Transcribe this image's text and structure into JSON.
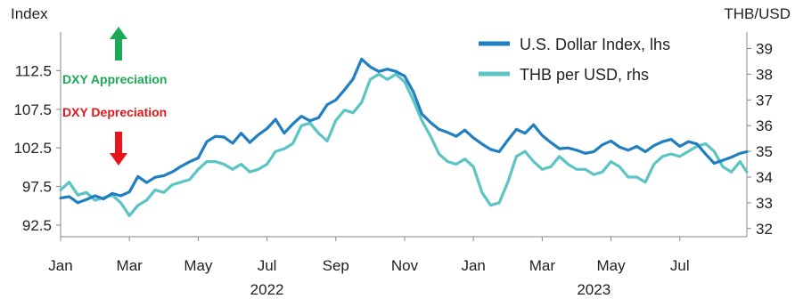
{
  "chart_data": {
    "type": "line",
    "left_axis": {
      "title": "Index",
      "ticks": [
        92.5,
        97.5,
        102.5,
        107.5,
        112.5
      ],
      "range": [
        91.0,
        117.5
      ]
    },
    "right_axis": {
      "title": "THB/USD",
      "ticks": [
        32,
        33,
        34,
        35,
        36,
        37,
        38,
        39
      ],
      "range": [
        31.68,
        39.64
      ]
    },
    "x_axis": {
      "month_labels": [
        "Jan",
        "Mar",
        "May",
        "Jul",
        "Sep",
        "Nov",
        "Jan",
        "Mar",
        "May",
        "Jul"
      ],
      "month_positions": [
        0,
        2,
        4,
        6,
        8,
        10,
        12,
        14,
        16,
        18
      ],
      "year_labels": [
        "2022",
        "2023"
      ],
      "year_positions": [
        6,
        15.5
      ],
      "range": [
        0,
        19.95
      ]
    },
    "legend_position": "top-right",
    "grid": false,
    "annotations": {
      "appreciation": "DXY Appreciation",
      "depreciation": "DXY Depreciation"
    },
    "colors": {
      "dxy": "#1f7fc0",
      "thb": "#5bc4c4",
      "up_arrow": "#1aaa55",
      "down_arrow": "#e8141c"
    },
    "series": [
      {
        "name": "U.S. Dollar Index, lhs",
        "axis": "left",
        "x": [
          0,
          0.25,
          0.5,
          0.75,
          1,
          1.25,
          1.5,
          1.75,
          2,
          2.25,
          2.5,
          2.75,
          3,
          3.25,
          3.5,
          3.75,
          4,
          4.25,
          4.5,
          4.75,
          5,
          5.25,
          5.5,
          5.75,
          6,
          6.25,
          6.5,
          6.75,
          7,
          7.25,
          7.5,
          7.75,
          8,
          8.25,
          8.5,
          8.75,
          9,
          9.25,
          9.5,
          9.75,
          10,
          10.25,
          10.5,
          10.75,
          11,
          11.25,
          11.5,
          11.75,
          12,
          12.25,
          12.5,
          12.75,
          13,
          13.25,
          13.5,
          13.75,
          14,
          14.25,
          14.5,
          14.75,
          15,
          15.25,
          15.5,
          15.75,
          16,
          16.25,
          16.5,
          16.75,
          17,
          17.25,
          17.5,
          17.75,
          18,
          18.25,
          18.5,
          18.75,
          19,
          19.25,
          19.5,
          19.75,
          19.95
        ],
        "values": [
          96.0,
          96.2,
          95.4,
          95.8,
          96.3,
          95.9,
          96.6,
          96.3,
          96.8,
          98.8,
          98.0,
          98.7,
          98.9,
          99.4,
          100.1,
          100.7,
          101.2,
          103.3,
          104.0,
          103.9,
          103.1,
          104.4,
          103.2,
          104.2,
          105.0,
          106.2,
          104.4,
          105.6,
          106.6,
          106.0,
          106.4,
          108.1,
          108.7,
          110.0,
          111.4,
          114.0,
          113.0,
          112.4,
          112.7,
          112.4,
          111.8,
          109.8,
          106.9,
          105.8,
          104.9,
          104.5,
          104.0,
          104.8,
          103.8,
          103.0,
          102.3,
          102.0,
          103.5,
          104.9,
          104.4,
          105.5,
          104.1,
          103.2,
          102.4,
          102.5,
          102.2,
          101.8,
          102.0,
          102.9,
          103.4,
          102.6,
          102.2,
          102.7,
          102.0,
          102.8,
          103.3,
          103.6,
          102.7,
          103.3,
          103.0,
          101.7,
          100.5,
          100.9,
          101.3,
          101.8,
          102.0
        ]
      },
      {
        "name": "THB per USD, rhs",
        "axis": "right",
        "x": [
          0,
          0.25,
          0.5,
          0.75,
          1,
          1.25,
          1.5,
          1.75,
          2,
          2.25,
          2.5,
          2.75,
          3,
          3.25,
          3.5,
          3.75,
          4,
          4.25,
          4.5,
          4.75,
          5,
          5.25,
          5.5,
          5.75,
          6,
          6.25,
          6.5,
          6.75,
          7,
          7.25,
          7.5,
          7.75,
          8,
          8.25,
          8.5,
          8.75,
          9,
          9.25,
          9.5,
          9.75,
          10,
          10.25,
          10.5,
          10.75,
          11,
          11.25,
          11.5,
          11.75,
          12,
          12.25,
          12.5,
          12.75,
          13,
          13.25,
          13.5,
          13.75,
          14,
          14.25,
          14.5,
          14.75,
          15,
          15.25,
          15.5,
          15.75,
          16,
          16.25,
          16.5,
          16.75,
          17,
          17.25,
          17.5,
          17.75,
          18,
          18.25,
          18.5,
          18.75,
          19,
          19.25,
          19.5,
          19.75,
          19.95
        ],
        "values": [
          33.5,
          33.8,
          33.3,
          33.4,
          33.1,
          33.2,
          33.3,
          33.0,
          32.5,
          32.9,
          33.1,
          33.5,
          33.4,
          33.7,
          33.8,
          33.9,
          34.3,
          34.6,
          34.6,
          34.5,
          34.3,
          34.5,
          34.2,
          34.3,
          34.5,
          35.0,
          35.1,
          35.3,
          36.0,
          36.1,
          35.7,
          35.4,
          36.2,
          36.6,
          36.5,
          36.9,
          37.8,
          38.0,
          37.8,
          38.0,
          37.7,
          37.0,
          36.2,
          35.6,
          34.9,
          34.6,
          34.5,
          34.7,
          34.4,
          33.4,
          32.9,
          33.0,
          33.8,
          34.8,
          35.0,
          34.6,
          34.3,
          34.4,
          34.8,
          34.5,
          34.3,
          34.3,
          34.1,
          34.2,
          34.6,
          34.4,
          34.0,
          34.0,
          33.8,
          34.5,
          34.8,
          34.9,
          34.8,
          35.0,
          35.2,
          35.3,
          35.0,
          34.4,
          34.2,
          34.6,
          34.2
        ]
      }
    ]
  }
}
